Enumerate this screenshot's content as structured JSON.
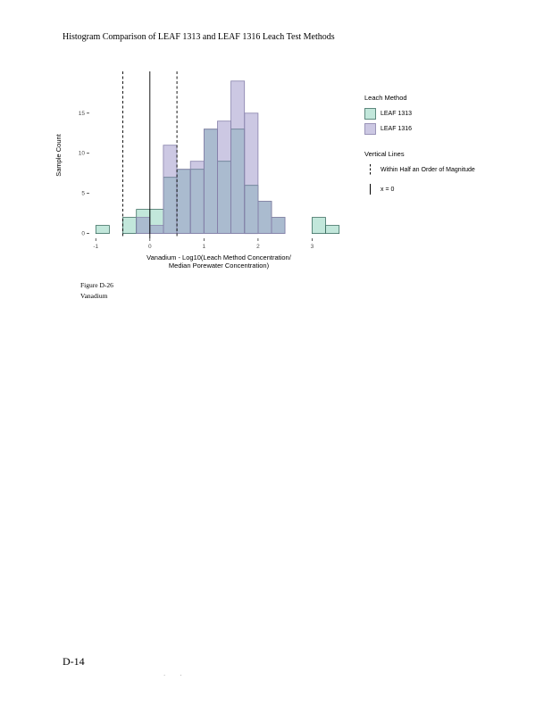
{
  "page": {
    "title": "Histogram Comparison of LEAF 1313 and LEAF 1316 Leach Test Methods",
    "figure_label": "Figure D-26",
    "figure_name": "Vanadium",
    "page_number": "D-14",
    "footer_marks": ". ."
  },
  "chart_data": {
    "type": "bar",
    "subtype": "overlaid-histogram",
    "title": "Histogram Comparison of LEAF 1313 and LEAF 1316 Leach Test Methods",
    "xlabel": "Vanadium - Log10(Leach Method Concentration/ Median Porewater Concentration)",
    "xlabel_line1": "Vanadium - Log10(Leach Method Concentration/",
    "xlabel_line2": "Median Porewater Concentration)",
    "ylabel": "Sample Count",
    "xlim": [
      -1.12,
      3.67
    ],
    "ylim": [
      -0.6,
      20.2
    ],
    "x_ticks": [
      -1,
      0,
      1,
      2,
      3
    ],
    "y_ticks": [
      0,
      5,
      10,
      15
    ],
    "grid": false,
    "legend_position": "right",
    "bin_start": -1.0,
    "bin_width": 0.25,
    "series": [
      {
        "name": "LEAF 1313",
        "fill": "#66c2a5",
        "fill_opacity": 0.4,
        "stroke": "#3d6f62",
        "values": [
          1,
          0,
          2,
          3,
          3,
          7,
          8,
          8,
          13,
          9,
          13,
          6,
          4,
          2,
          0,
          0,
          2,
          1
        ]
      },
      {
        "name": "LEAF 1316",
        "fill": "#8f86c2",
        "fill_opacity": 0.45,
        "stroke": "#8781ab",
        "values": [
          0,
          0,
          0,
          2,
          1,
          11,
          8,
          9,
          13,
          14,
          19,
          15,
          4,
          2,
          0,
          0,
          0,
          0
        ]
      }
    ],
    "vlines": [
      {
        "x": -0.5,
        "style": "dashed",
        "label": "Within Half an Order of Magnitude"
      },
      {
        "x": 0.5,
        "style": "dashed",
        "label": "Within Half an Order of Magnitude"
      },
      {
        "x": 0,
        "style": "solid",
        "label": "x = 0"
      }
    ],
    "legend": {
      "fill_title": "Leach Method",
      "line_title": "Vertical Lines",
      "line_items": [
        {
          "label": "Within Half an Order of Magnitude",
          "style": "dashed"
        },
        {
          "label": "x = 0",
          "style": "solid"
        }
      ]
    }
  }
}
